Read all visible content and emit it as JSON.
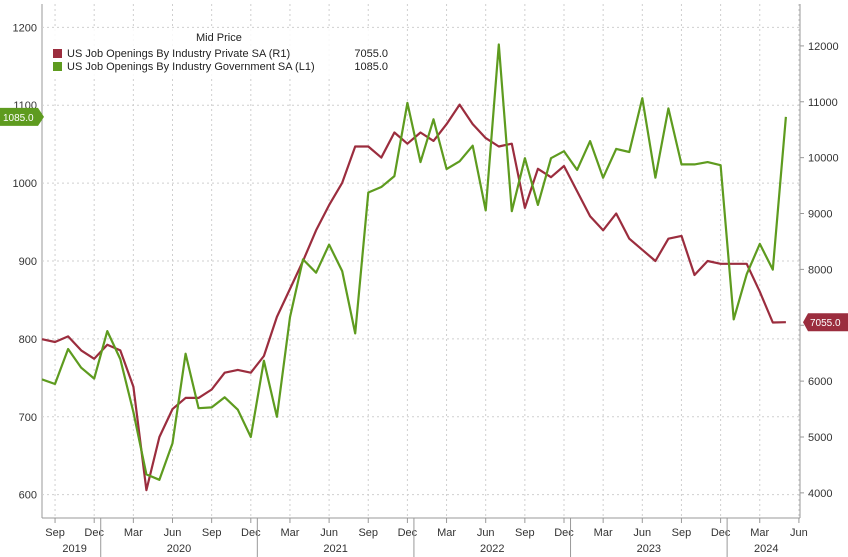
{
  "chart_data": {
    "type": "line",
    "legend_title": "Mid Price",
    "legend_position": "top-center",
    "grid": true,
    "x_month_labels": [
      "Sep",
      "Dec",
      "Mar",
      "Jun",
      "Sep",
      "Dec",
      "Mar",
      "Jun",
      "Sep",
      "Dec",
      "Mar",
      "Jun",
      "Sep",
      "Dec",
      "Mar",
      "Jun",
      "Sep",
      "Dec",
      "Mar",
      "Jun"
    ],
    "x_year_labels": [
      "2019",
      "2020",
      "2021",
      "2022",
      "2023",
      "2024"
    ],
    "left_axis": {
      "ylim": [
        570,
        1230
      ],
      "ticks": [
        "600",
        "700",
        "800",
        "900",
        "1000",
        "1100",
        "1200"
      ]
    },
    "right_axis": {
      "ylim": [
        3550,
        12750
      ],
      "ticks": [
        "4000",
        "5000",
        "6000",
        "7000",
        "8000",
        "9000",
        "10000",
        "11000",
        "12000"
      ]
    },
    "x": [
      "2019-08",
      "2019-09",
      "2019-10",
      "2019-11",
      "2019-12",
      "2020-01",
      "2020-02",
      "2020-03",
      "2020-04",
      "2020-05",
      "2020-06",
      "2020-07",
      "2020-08",
      "2020-09",
      "2020-10",
      "2020-11",
      "2020-12",
      "2021-01",
      "2021-02",
      "2021-03",
      "2021-04",
      "2021-05",
      "2021-06",
      "2021-07",
      "2021-08",
      "2021-09",
      "2021-10",
      "2021-11",
      "2021-12",
      "2022-01",
      "2022-02",
      "2022-03",
      "2022-04",
      "2022-05",
      "2022-06",
      "2022-07",
      "2022-08",
      "2022-09",
      "2022-10",
      "2022-11",
      "2022-12",
      "2023-01",
      "2023-02",
      "2023-03",
      "2023-04",
      "2023-05",
      "2023-06",
      "2023-07",
      "2023-08",
      "2023-09",
      "2023-10",
      "2023-11",
      "2023-12",
      "2024-01",
      "2024-02",
      "2024-03",
      "2024-04",
      "2024-05"
    ],
    "series": [
      {
        "name": "US Job Openings By Industry Private SA  (R1)",
        "last_value": "7055.0",
        "axis": "right",
        "color": "#9b2d3e",
        "values": [
          6750,
          6700,
          6800,
          6550,
          6400,
          6650,
          6550,
          5900,
          4050,
          5000,
          5500,
          5700,
          5700,
          5850,
          6150,
          6200,
          6150,
          6450,
          7150,
          7650,
          8150,
          8700,
          9150,
          9550,
          10200,
          10200,
          10000,
          10450,
          10250,
          10450,
          10300,
          10600,
          10950,
          10600,
          10350,
          10200,
          10250,
          9100,
          9800,
          9650,
          9850,
          9400,
          8950,
          8700,
          9000,
          8550,
          8350,
          8150,
          8550,
          8600,
          7900,
          8150,
          8100,
          8100,
          8100,
          7600,
          7050,
          7055
        ]
      },
      {
        "name": "US Job Openings By Industry Government SA  (L1)",
        "last_value": "1085.0",
        "axis": "left",
        "color": "#5e9b1f",
        "values": [
          748,
          742,
          787,
          763,
          749,
          810,
          774,
          706,
          626,
          619,
          666,
          781,
          711,
          712,
          725,
          709,
          674,
          772,
          700,
          828,
          902,
          885,
          921,
          887,
          807,
          988,
          995,
          1009,
          1103,
          1027,
          1082,
          1018,
          1028,
          1048,
          965,
          1178,
          964,
          1032,
          972,
          1032,
          1041,
          1017,
          1054,
          1007,
          1044,
          1040,
          1109,
          1007,
          1096,
          1024,
          1024,
          1027,
          1023,
          825,
          883,
          922,
          889,
          1085
        ]
      }
    ]
  }
}
